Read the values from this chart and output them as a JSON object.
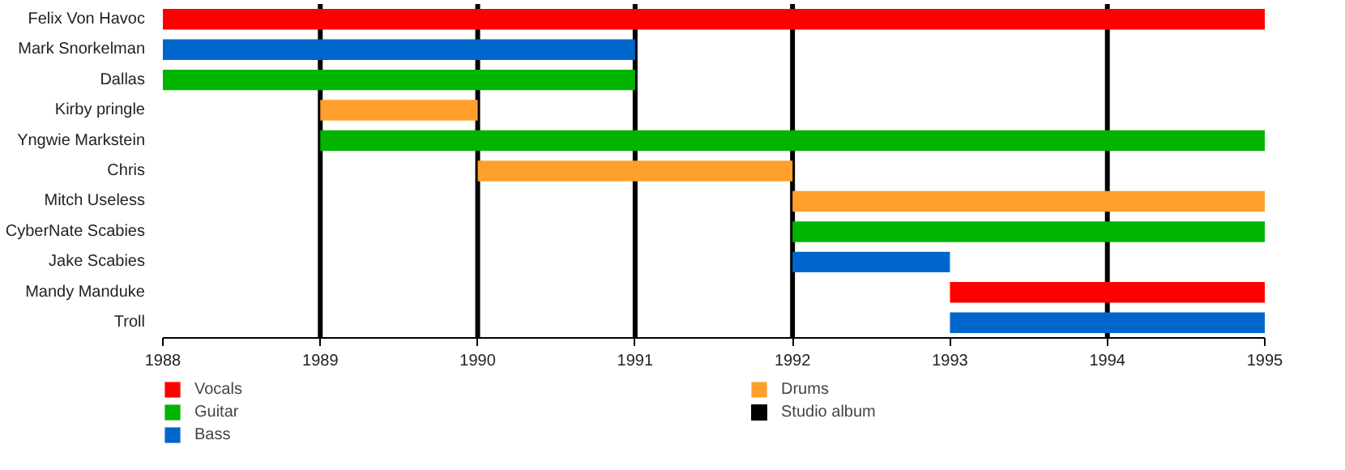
{
  "chart_data": {
    "type": "bar",
    "orientation": "horizontal",
    "categories": [
      "Felix Von Havoc",
      "Mark Snorkelman",
      "Dallas",
      "Kirby pringle",
      "Yngwie Markstein",
      "Chris",
      "Mitch Useless",
      "CyberNate Scabies",
      "Jake Scabies",
      "Mandy Manduke",
      "Troll"
    ],
    "series": [
      {
        "name": "Vocals",
        "color": "#ff0000",
        "values": [
          7,
          null,
          null,
          null,
          null,
          null,
          null,
          null,
          null,
          2,
          null
        ],
        "base": [
          1988,
          null,
          null,
          null,
          null,
          null,
          null,
          null,
          null,
          1993,
          null
        ]
      },
      {
        "name": "Guitar",
        "color": "#00b400",
        "values": [
          null,
          null,
          3,
          null,
          6,
          null,
          null,
          3,
          null,
          null,
          null
        ],
        "base": [
          null,
          null,
          1988,
          null,
          1989,
          null,
          null,
          1992,
          null,
          null,
          null
        ]
      },
      {
        "name": "Bass",
        "color": "#0066cc",
        "values": [
          null,
          3,
          null,
          null,
          null,
          null,
          null,
          null,
          1,
          null,
          2
        ],
        "base": [
          null,
          1988,
          null,
          null,
          null,
          null,
          null,
          null,
          1992,
          null,
          1993
        ]
      },
      {
        "name": "Drums",
        "color": "#ffa02c",
        "values": [
          null,
          null,
          null,
          1,
          null,
          2,
          3,
          null,
          null,
          null,
          null
        ],
        "base": [
          null,
          null,
          null,
          1989,
          null,
          1990,
          1992,
          null,
          null,
          null,
          null
        ]
      }
    ],
    "ref_lines": [
      {
        "axis": "x",
        "value": 1989,
        "label": "Studio album",
        "color": "#000000"
      },
      {
        "axis": "x",
        "value": 1990,
        "color": "#000000"
      },
      {
        "axis": "x",
        "value": 1991,
        "color": "#000000"
      },
      {
        "axis": "x",
        "value": 1992,
        "color": "#000000"
      },
      {
        "axis": "x",
        "value": 1994,
        "color": "#000000"
      }
    ],
    "xlim": [
      1988,
      1995
    ],
    "xticks": [
      1988,
      1989,
      1990,
      1991,
      1992,
      1993,
      1994,
      1995
    ],
    "grid": false,
    "legend": "bottom"
  }
}
